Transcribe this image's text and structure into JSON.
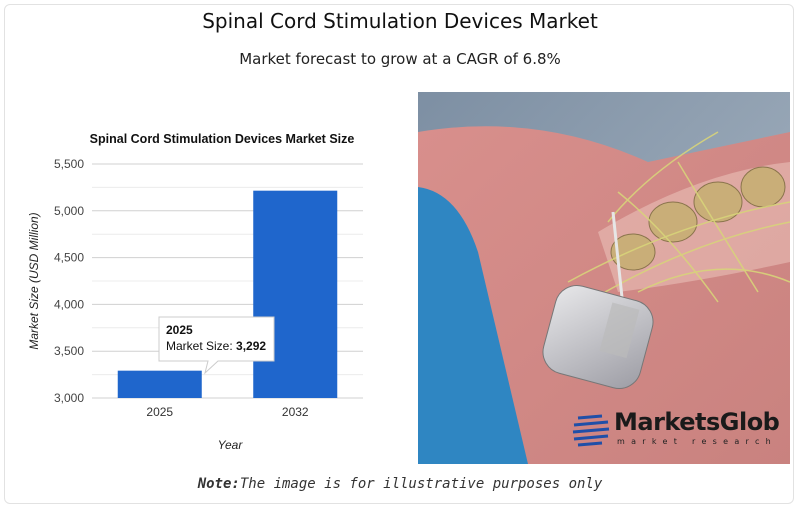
{
  "header": {
    "title": "Spinal Cord Stimulation Devices Market",
    "subtitle": "Market forecast to grow at a CAGR of 6.8%"
  },
  "chart_data": {
    "type": "bar",
    "title": "Spinal Cord Stimulation Devices Market Size",
    "categories": [
      "2025",
      "2032"
    ],
    "values": [
      3292,
      5215
    ],
    "xlabel": "Year",
    "ylabel": "Market Size (USD Million)",
    "ylim": [
      3000,
      5500
    ],
    "yticks": [
      "3,000",
      "3,500",
      "4,000",
      "4,500",
      "5,000",
      "5,500"
    ],
    "grid": true,
    "bar_color": "#1f66cc",
    "tooltip": {
      "title": "2025",
      "label": "Market Size: ",
      "value": "3,292"
    }
  },
  "image": {
    "logo_name": "MarketsGlob",
    "logo_tagline": "market research"
  },
  "note": {
    "label": "Note:",
    "text": "The image is for illustrative purposes only"
  }
}
